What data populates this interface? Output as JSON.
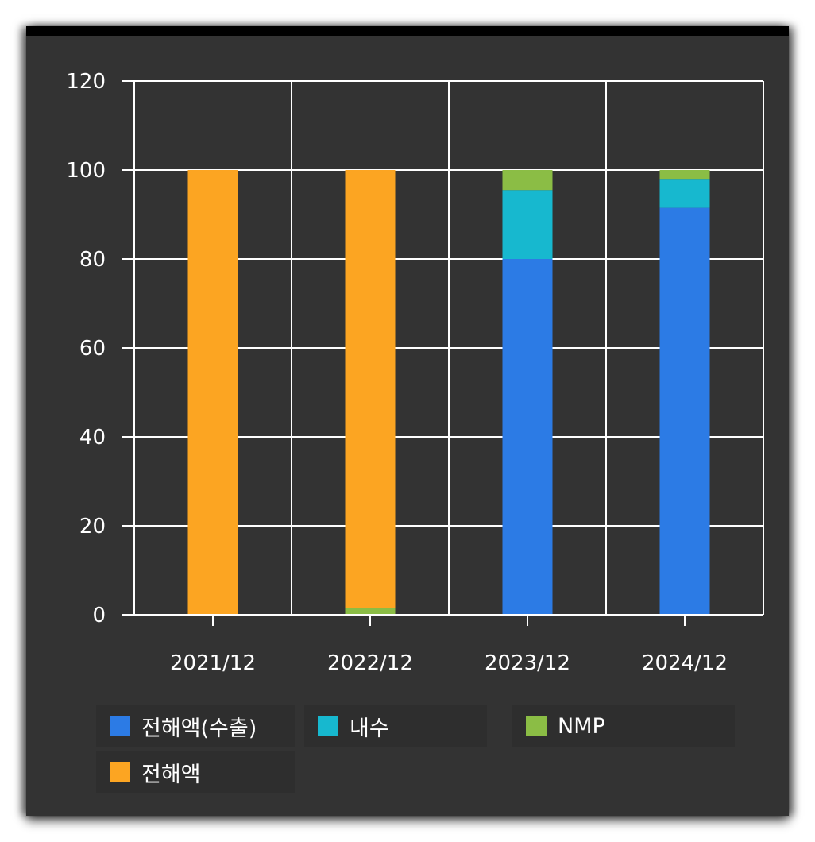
{
  "chart_data": {
    "type": "bar",
    "stacked": true,
    "categories": [
      "2021/12",
      "2022/12",
      "2023/12",
      "2024/12"
    ],
    "series": [
      {
        "name": "전해액(수출)",
        "color": "#2c7be5",
        "values": [
          0,
          0,
          80,
          91.5
        ]
      },
      {
        "name": "내수",
        "color": "#17b8cf",
        "values": [
          0,
          0,
          15.5,
          6.5
        ]
      },
      {
        "name": "NMP",
        "color": "#8bbd45",
        "values": [
          0,
          1.5,
          4.5,
          2
        ]
      },
      {
        "name": "전해액",
        "color": "#fca522",
        "values": [
          100,
          98.5,
          0,
          0
        ]
      }
    ],
    "y_ticks": [
      "0",
      "20",
      "40",
      "60",
      "80",
      "100",
      "120"
    ],
    "ylim": [
      0,
      120
    ],
    "grid": true,
    "legend_position": "bottom",
    "background": "#333333"
  }
}
